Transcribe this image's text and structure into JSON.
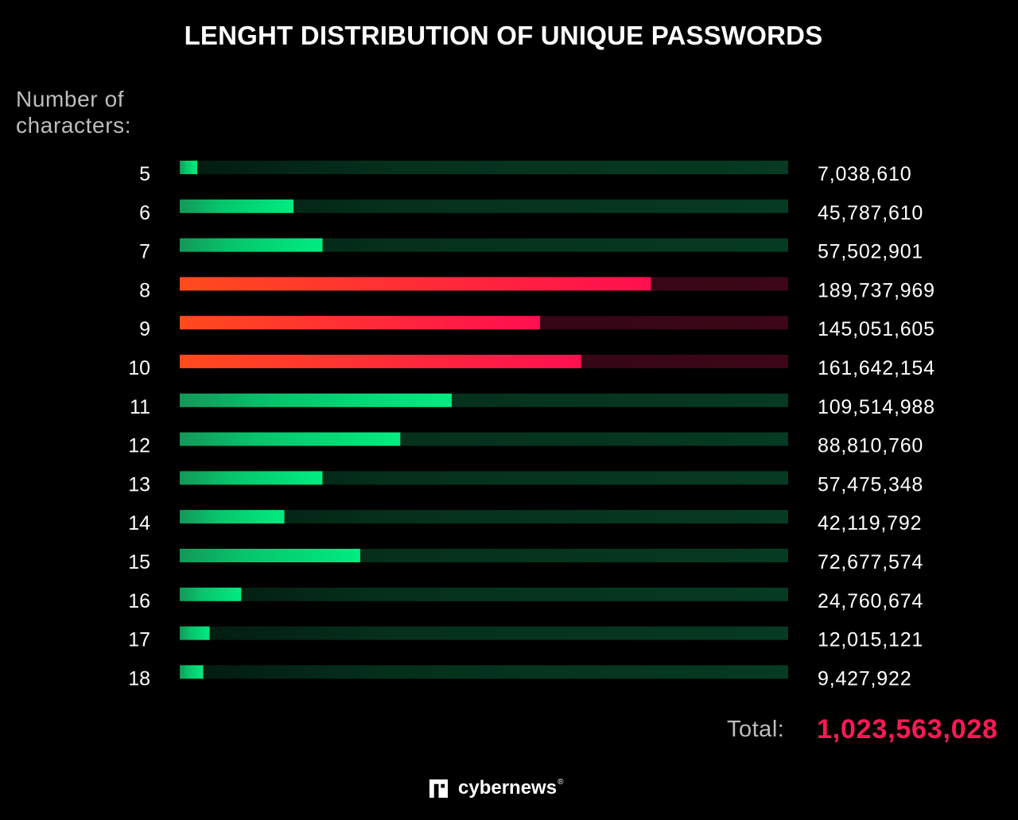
{
  "chart_data": {
    "type": "bar",
    "orientation": "horizontal",
    "title": "LENGHT DISTRIBUTION OF UNIQUE PASSWORDS",
    "ylabel": [
      "Number of",
      "characters:"
    ],
    "categories": [
      "5",
      "6",
      "7",
      "8",
      "9",
      "10",
      "11",
      "12",
      "13",
      "14",
      "15",
      "16",
      "17",
      "18"
    ],
    "values": [
      7038610,
      45787610,
      57502901,
      189737969,
      145051605,
      161642154,
      109514988,
      88810760,
      57475348,
      42119792,
      72677574,
      24760674,
      12015121,
      9427922
    ],
    "value_labels": [
      "7,038,610",
      "45,787,610",
      "57,502,901",
      "189,737,969",
      "145,051,605",
      "161,642,154",
      "109,514,988",
      "88,810,760",
      "57,475,348",
      "42,119,792",
      "72,677,574",
      "24,760,674",
      "12,015,121",
      "9,427,922"
    ],
    "highlighted": [
      "8",
      "9",
      "10"
    ],
    "xlim": [
      0,
      245000000
    ],
    "grid": false,
    "legend": "none"
  },
  "total": {
    "label": "Total:",
    "value": "1,023,563,028"
  },
  "brand": {
    "name": "cybernews",
    "mark": "®"
  },
  "colors": {
    "background": "#000000",
    "normal_bar": "#00e57d",
    "normal_track": "#063a22",
    "highlight_bar_start": "#ff4c1f",
    "highlight_bar_end": "#ff1050",
    "highlight_track": "#3a0716",
    "total_value": "#ff1a55",
    "muted_text": "#bdbdbd"
  },
  "icons": {
    "brand_logo": "cybernews-logo-icon"
  }
}
